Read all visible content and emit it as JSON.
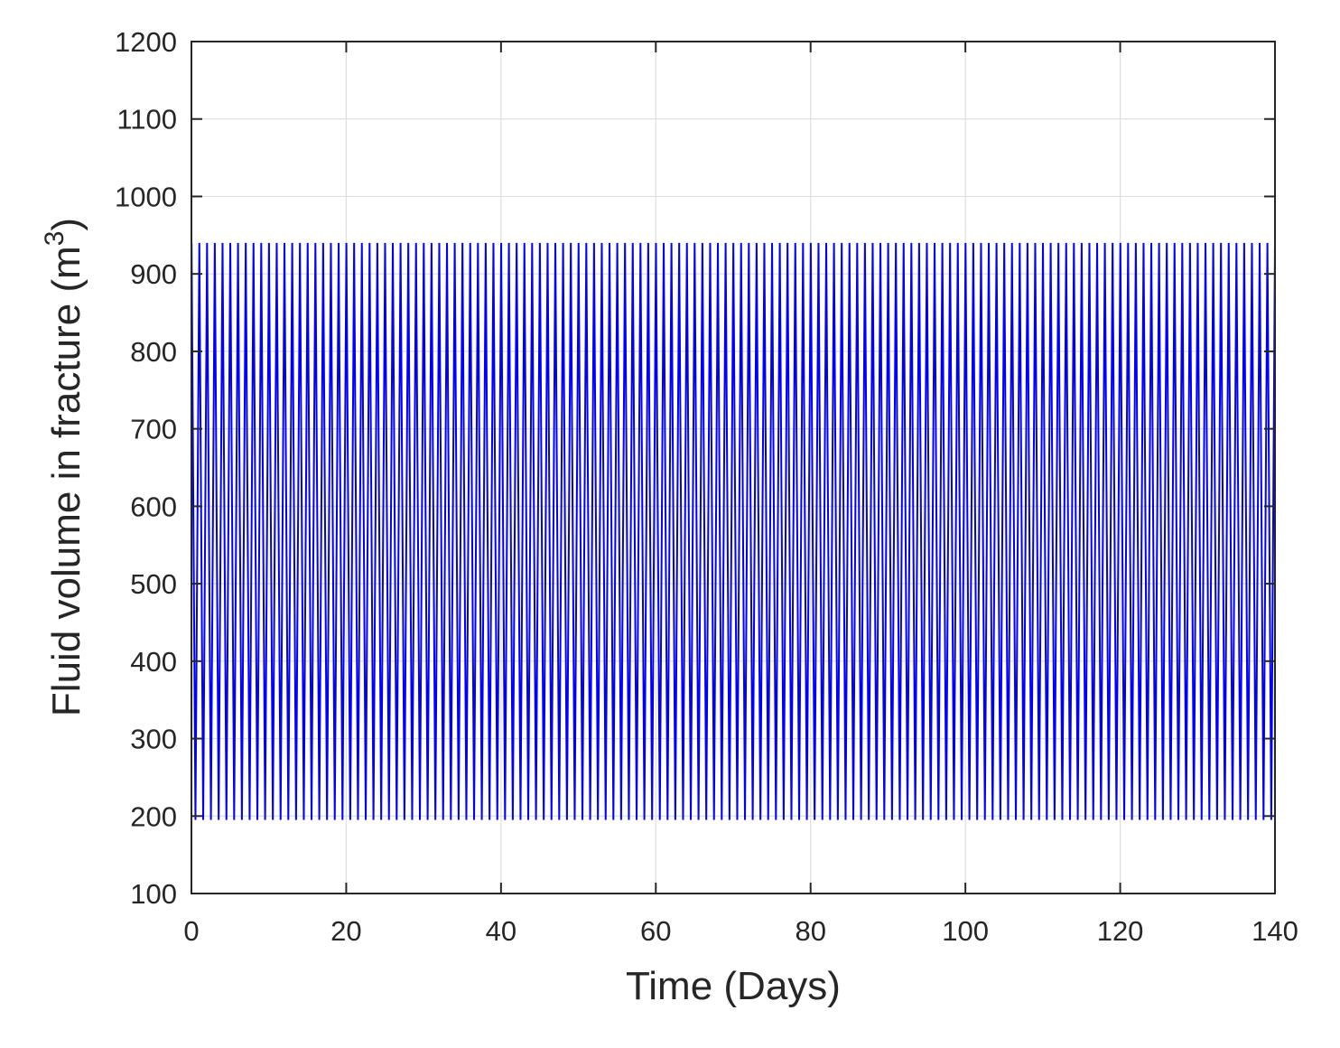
{
  "chart_data": {
    "type": "line",
    "title": "",
    "xlabel": "Time (Days)",
    "ylabel": "Fluid volume in fracture (m",
    "ylabel_superscript": "3",
    "ylabel_suffix": ")",
    "xlim": [
      0,
      140
    ],
    "ylim": [
      100,
      1200
    ],
    "xticks": [
      0,
      20,
      40,
      60,
      80,
      100,
      120,
      140
    ],
    "yticks": [
      100,
      200,
      300,
      400,
      500,
      600,
      700,
      800,
      900,
      1000,
      1100,
      1200
    ],
    "grid": true,
    "legend": "none",
    "series": [
      {
        "color": "#0000ff",
        "start": {
          "x": 0,
          "y": 100
        },
        "oscillation": {
          "x_start": 0,
          "x_end": 140,
          "cycles": 140,
          "max": 940,
          "min": 195
        }
      }
    ]
  }
}
